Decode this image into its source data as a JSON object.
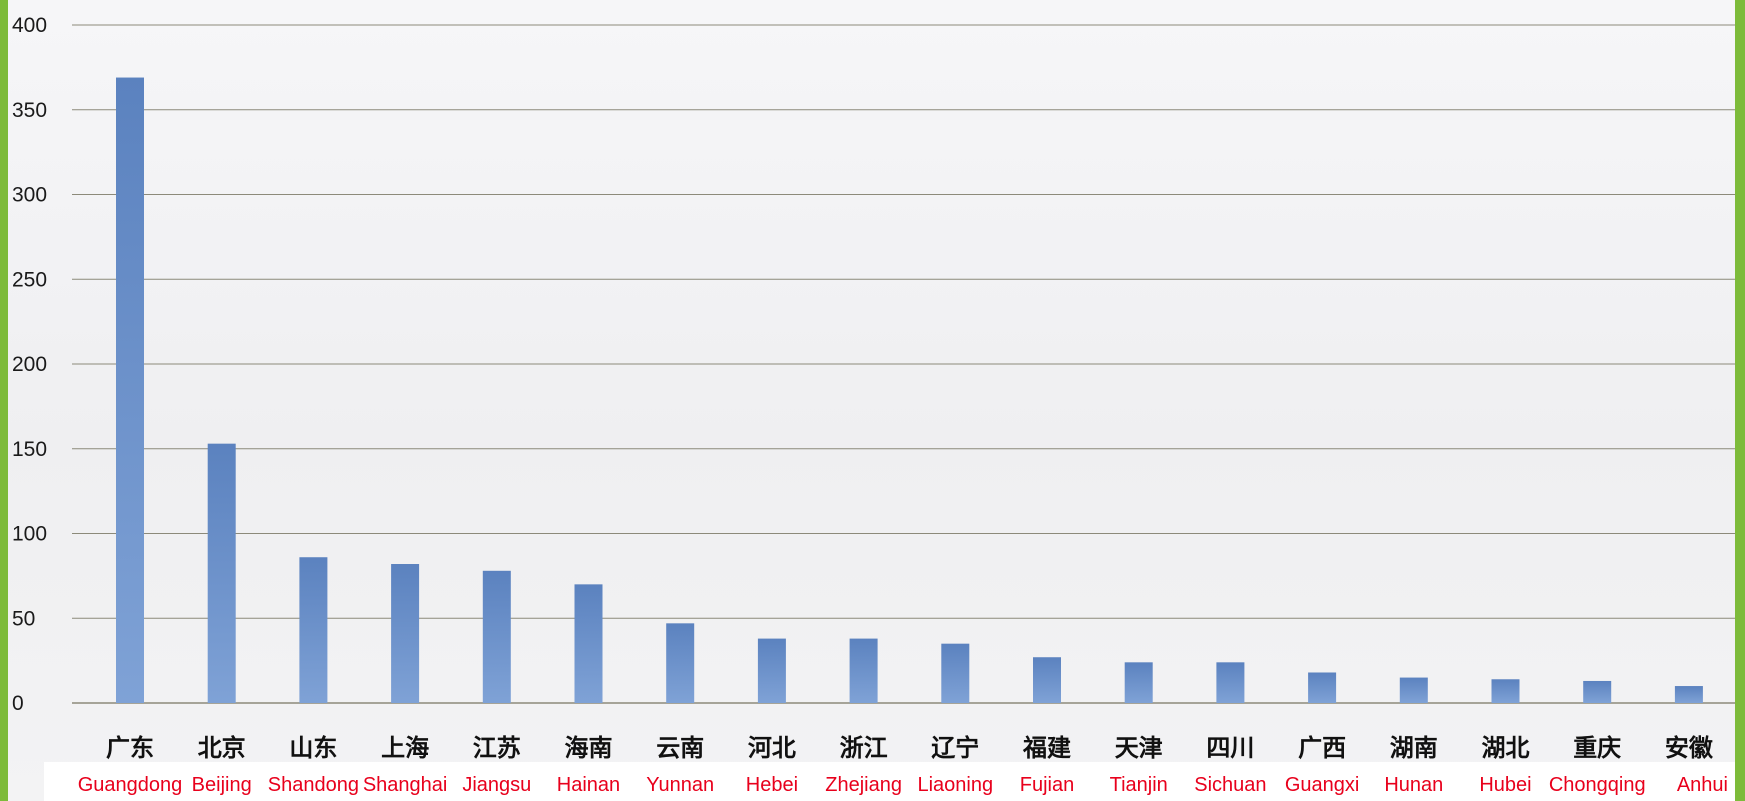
{
  "chart_data": {
    "type": "bar",
    "categories_cn": [
      "广东",
      "北京",
      "山东",
      "上海",
      "江苏",
      "海南",
      "云南",
      "河北",
      "浙江",
      "辽宁",
      "福建",
      "天津",
      "四川",
      "广西",
      "湖南",
      "湖北",
      "重庆",
      "安徽"
    ],
    "categories_en": [
      "Guangdong",
      "Beijing",
      "Shandong",
      "Shanghai",
      "Jiangsu",
      "Hainan",
      "Yunnan",
      "Hebei",
      "Zhejiang",
      "Liaoning",
      "Fujian",
      "Tianjin",
      "Sichuan",
      "Guangxi",
      "Hunan",
      "Hubei",
      "Chongqing",
      "Anhui"
    ],
    "values": [
      369,
      153,
      86,
      82,
      78,
      70,
      47,
      38,
      38,
      35,
      27,
      24,
      24,
      18,
      15,
      14,
      13,
      10
    ],
    "ylim": [
      0,
      400
    ],
    "yticks": [
      "0",
      "50",
      "100",
      "150",
      "200",
      "250",
      "300",
      "350",
      "400"
    ],
    "grid": true,
    "title": "",
    "xlabel": "",
    "ylabel": ""
  },
  "colors": {
    "frame": "#7dbb3a",
    "bar_top": "#5b82bf",
    "bar_bottom": "#7fa2d6",
    "grid": "#8c8a7a",
    "english_label": "#e8001c"
  }
}
